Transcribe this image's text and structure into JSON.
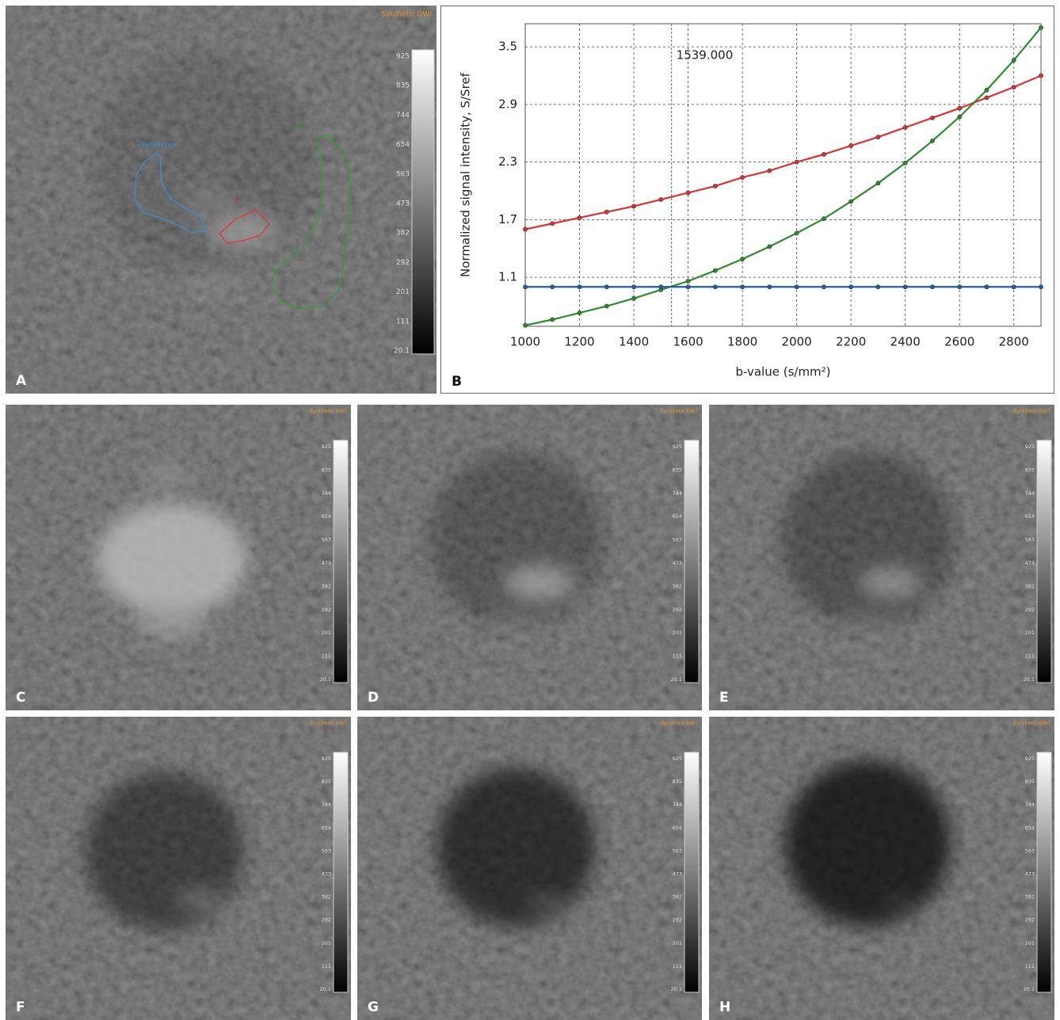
{
  "panels": [
    {
      "letter": "A",
      "overlay": "Synthetic DWI",
      "colorbar": [
        925,
        835,
        744,
        654,
        563,
        473,
        382,
        292,
        201,
        111,
        20.1
      ],
      "rois": [
        {
          "label": "Reference"
        },
        {
          "label": "2"
        },
        {
          "label": "3"
        }
      ]
    },
    {
      "letter": "C",
      "overlay": "Synthetic DWI",
      "colorbar": [
        925,
        835,
        744,
        654,
        563,
        473,
        382,
        292,
        201,
        111,
        20.1
      ]
    },
    {
      "letter": "D",
      "overlay": "Synthetic DWI",
      "colorbar": [
        925,
        835,
        744,
        654,
        563,
        473,
        382,
        292,
        201,
        111,
        20.1
      ]
    },
    {
      "letter": "E",
      "overlay": "Synthetic DWI",
      "colorbar": [
        925,
        835,
        744,
        654,
        563,
        473,
        382,
        292,
        201,
        111,
        20.1
      ]
    },
    {
      "letter": "F",
      "overlay": "Synthetic DWI",
      "colorbar": [
        925,
        835,
        744,
        654,
        563,
        473,
        382,
        292,
        201,
        111,
        20.1
      ]
    },
    {
      "letter": "G",
      "overlay": "Synthetic DWI",
      "colorbar": [
        925,
        835,
        744,
        654,
        563,
        473,
        382,
        292,
        201,
        111,
        20.1
      ]
    },
    {
      "letter": "H",
      "overlay": "Synthetic DWI",
      "colorbar": [
        925,
        835,
        744,
        654,
        563,
        473,
        382,
        292,
        201,
        111,
        20.1
      ]
    }
  ],
  "chart_data": {
    "type": "line",
    "letter": "B",
    "x_label": "b-value (s/mm²)",
    "y_label": "Normalized signal intensity, S/Sref",
    "x": [
      1000,
      1100,
      1200,
      1300,
      1400,
      1500,
      1600,
      1700,
      1800,
      1900,
      2000,
      2100,
      2200,
      2300,
      2400,
      2500,
      2600,
      2700,
      2800,
      2900
    ],
    "series": [
      {
        "color": "#e03030",
        "values": [
          1.6,
          1.66,
          1.72,
          1.78,
          1.84,
          1.91,
          1.98,
          2.05,
          2.14,
          2.21,
          2.3,
          2.38,
          2.47,
          2.56,
          2.66,
          2.76,
          2.86,
          2.97,
          3.08,
          3.2
        ]
      },
      {
        "color": "#2e8b2e",
        "values": [
          0.6,
          0.66,
          0.73,
          0.8,
          0.88,
          0.97,
          1.06,
          1.17,
          1.29,
          1.42,
          1.56,
          1.71,
          1.89,
          2.08,
          2.29,
          2.52,
          2.77,
          3.05,
          3.36,
          3.7
        ]
      },
      {
        "color": "#1f5fa8",
        "values": [
          1.0,
          1.0,
          1.0,
          1.0,
          1.0,
          1.0,
          1.0,
          1.0,
          1.0,
          1.0,
          1.0,
          1.0,
          1.0,
          1.0,
          1.0,
          1.0,
          1.0,
          1.0,
          1.0,
          1.0
        ]
      }
    ],
    "vline": {
      "value": 1539,
      "label": "1539.000",
      "color": "#2e8b2e"
    },
    "xlim": [
      1000,
      2900
    ],
    "xticks": [
      1000,
      1200,
      1400,
      1600,
      1800,
      2000,
      2200,
      2400,
      2600,
      2800
    ],
    "ylim": [
      0.59,
      3.74
    ],
    "yticks": [
      1.1,
      1.7,
      2.3,
      2.9,
      3.5
    ],
    "grid": true
  }
}
